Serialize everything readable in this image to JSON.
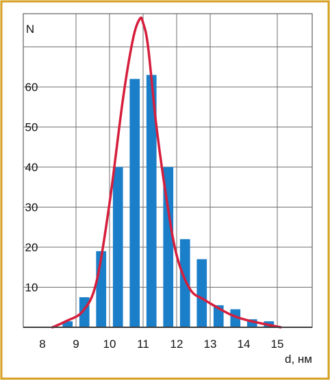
{
  "chart_data": {
    "type": "bar",
    "title": "",
    "xlabel": "d, нм",
    "ylabel": "N",
    "xlim": [
      8,
      15
    ],
    "ylim": [
      0,
      80
    ],
    "grid": true,
    "x_ticks": [
      "8",
      "9",
      "10",
      "11",
      "12",
      "13",
      "14",
      "15"
    ],
    "y_ticks": [
      "10",
      "20",
      "30",
      "40",
      "50",
      "60"
    ],
    "x_tick_values": [
      8,
      9,
      10,
      11,
      12,
      13,
      14,
      15
    ],
    "y_tick_values": [
      10,
      20,
      30,
      40,
      50,
      60
    ],
    "x_gridlines": [
      9,
      10,
      11,
      12,
      13,
      15
    ],
    "y_gridlines": [
      10,
      20,
      30,
      40,
      50,
      60,
      70
    ],
    "bars": {
      "x": [
        8.75,
        9.25,
        9.75,
        10.25,
        10.75,
        11.25,
        11.75,
        12.25,
        12.75,
        13.25,
        13.75,
        14.25,
        14.75
      ],
      "values": [
        1.5,
        7.5,
        19,
        40,
        62,
        63,
        40,
        22,
        17,
        5.5,
        4.5,
        2,
        1.5
      ],
      "width": 0.3
    },
    "fit_curve": {
      "x": [
        8.3,
        8.7,
        9.2,
        9.6,
        10.0,
        10.4,
        10.7,
        10.9,
        11.0,
        11.15,
        11.4,
        11.7,
        12.0,
        12.4,
        12.8,
        13.2,
        13.6,
        14.0,
        14.5,
        15.1
      ],
      "y": [
        0,
        1.5,
        4,
        11,
        31,
        57,
        72,
        77,
        76,
        70,
        50,
        32,
        18,
        9.5,
        7,
        5,
        3.2,
        2,
        1,
        0
      ]
    },
    "colors": {
      "frame": "#d4a020",
      "plot_background": "#ffffff",
      "bar": "#1a7fc8",
      "curve": "#d61e3c",
      "grid": "#6e6e6e",
      "axis": "#3c3c3c"
    }
  }
}
